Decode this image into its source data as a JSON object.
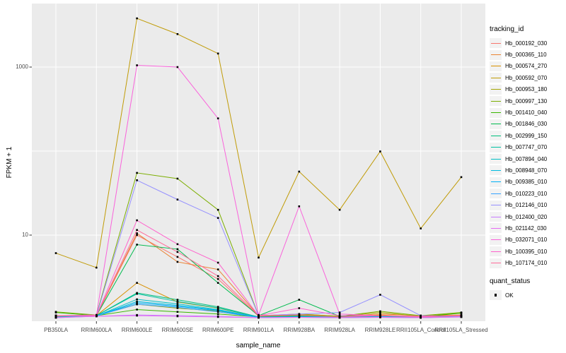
{
  "figure": {
    "panel_bg": "#EBEBEB",
    "grid_color": "#FFFFFF",
    "point_color": "#000000",
    "axis_text_color": "#4D4D4D",
    "tick_mark_color": "#333333"
  },
  "axes": {
    "x_title": "sample_name",
    "y_title": "FPKM + 1"
  },
  "legend": {
    "tracking_title": "tracking_id",
    "quant_title": "quant_status",
    "quant_items": [
      {
        "label": "OK",
        "marker": "black-square"
      }
    ]
  },
  "chart_data": {
    "type": "line",
    "title": "",
    "xlabel": "sample_name",
    "ylabel": "FPKM + 1",
    "y_scale": "log10",
    "ylim": [
      1,
      5700
    ],
    "grid": true,
    "legend_position": "right",
    "point_marker": "small-black-square",
    "y_ticks": [
      {
        "value": 1000,
        "label": "1000"
      },
      {
        "value": 10,
        "label": "10"
      }
    ],
    "y_gridlines": [
      10,
      100,
      1000
    ],
    "categories": [
      "PB350LA",
      "RRIM600LA",
      "RRIM600LE",
      "RRIM600SE",
      "RRIM600PE",
      "RRIM901LA",
      "RRIM928BA",
      "RRIM928LA",
      "RRIM928LE",
      "RRII105LA_Control",
      "RRII105LA_Stressed"
    ],
    "series": [
      {
        "name": "Hb_000192_030",
        "color": "#F8766D",
        "values": [
          1.08,
          1.1,
          10,
          5.5,
          3.0,
          1.08,
          1.1,
          1.06,
          1.1,
          1.06,
          1.1
        ]
      },
      {
        "name": "Hb_000365_110",
        "color": "#EA8331",
        "values": [
          1.06,
          1.1,
          10.5,
          4.8,
          3.9,
          1.1,
          1.15,
          1.08,
          1.15,
          1.1,
          1.12
        ]
      },
      {
        "name": "Hb_000574_270",
        "color": "#D89000",
        "values": [
          1.06,
          1.1,
          2.7,
          1.6,
          1.35,
          1.06,
          1.1,
          1.06,
          1.12,
          1.06,
          1.1
        ]
      },
      {
        "name": "Hb_000592_070",
        "color": "#C09B06",
        "values": [
          6.1,
          4.1,
          3800,
          2470,
          1450,
          5.4,
          57,
          20,
          99,
          12,
          49
        ]
      },
      {
        "name": "Hb_000953_180",
        "color": "#A3A500",
        "values": [
          1.1,
          1.1,
          1.5,
          1.35,
          1.25,
          1.06,
          1.15,
          1.08,
          1.2,
          1.08,
          1.18
        ]
      },
      {
        "name": "Hb_000997_130",
        "color": "#7CAE00",
        "values": [
          1.22,
          1.12,
          55,
          47,
          20,
          1.1,
          1.12,
          1.08,
          1.24,
          1.1,
          1.2
        ]
      },
      {
        "name": "Hb_001410_040",
        "color": "#39B600",
        "values": [
          1.2,
          1.1,
          1.3,
          1.22,
          1.15,
          1.06,
          1.1,
          1.06,
          1.1,
          1.06,
          1.18
        ]
      },
      {
        "name": "Hb_001846_030",
        "color": "#00BB4E",
        "values": [
          1.1,
          1.1,
          7.7,
          6.8,
          2.7,
          1.1,
          1.7,
          1.08,
          1.1,
          1.06,
          1.1
        ]
      },
      {
        "name": "Hb_002999_150",
        "color": "#00BF7D",
        "values": [
          1.06,
          1.1,
          2.05,
          1.7,
          1.4,
          1.06,
          1.08,
          1.05,
          1.08,
          1.05,
          1.08
        ]
      },
      {
        "name": "Hb_007747_070",
        "color": "#00C1A3",
        "values": [
          1.06,
          1.1,
          2.0,
          1.62,
          1.36,
          1.06,
          1.08,
          1.05,
          1.08,
          1.05,
          1.08
        ]
      },
      {
        "name": "Hb_007894_040",
        "color": "#00BFC4",
        "values": [
          1.05,
          1.09,
          1.72,
          1.52,
          1.3,
          1.05,
          1.07,
          1.05,
          1.07,
          1.05,
          1.08
        ]
      },
      {
        "name": "Hb_008948_070",
        "color": "#00BAE0",
        "values": [
          1.05,
          1.09,
          1.62,
          1.46,
          1.28,
          1.05,
          1.07,
          1.05,
          1.07,
          1.05,
          1.08
        ]
      },
      {
        "name": "Hb_009385_010",
        "color": "#00B0F6",
        "values": [
          1.05,
          1.09,
          1.56,
          1.42,
          1.26,
          1.05,
          1.06,
          1.04,
          1.06,
          1.04,
          1.07
        ]
      },
      {
        "name": "Hb_010223_010",
        "color": "#35A2FF",
        "values": [
          1.05,
          1.09,
          1.5,
          1.38,
          1.22,
          1.05,
          1.06,
          1.04,
          1.06,
          1.04,
          1.07
        ]
      },
      {
        "name": "Hb_012146_010",
        "color": "#9590FF",
        "values": [
          1.1,
          1.1,
          45,
          26.5,
          16,
          1.1,
          1.15,
          1.2,
          1.95,
          1.1,
          1.08
        ]
      },
      {
        "name": "Hb_012400_020",
        "color": "#C77CFF",
        "values": [
          1.04,
          1.08,
          1.12,
          1.1,
          1.08,
          1.04,
          1.05,
          1.04,
          1.05,
          1.04,
          1.06
        ]
      },
      {
        "name": "Hb_021142_030",
        "color": "#E76BF3",
        "values": [
          1.04,
          1.08,
          1.1,
          1.08,
          1.06,
          1.04,
          1.05,
          1.04,
          1.05,
          1.04,
          1.06
        ]
      },
      {
        "name": "Hb_032071_010",
        "color": "#FA62DB",
        "values": [
          1.1,
          1.12,
          1050,
          1000,
          245,
          1.12,
          22,
          1.15,
          1.1,
          1.08,
          1.1
        ]
      },
      {
        "name": "Hb_100395_010",
        "color": "#FF61CC",
        "values": [
          1.1,
          1.1,
          15,
          7.8,
          4.7,
          1.1,
          1.35,
          1.1,
          1.1,
          1.08,
          1.1
        ]
      },
      {
        "name": "Hb_107174_010",
        "color": "#FF6A98",
        "values": [
          1.1,
          1.1,
          11.5,
          6.3,
          3.25,
          1.1,
          1.12,
          1.06,
          1.1,
          1.06,
          1.1
        ]
      }
    ]
  }
}
